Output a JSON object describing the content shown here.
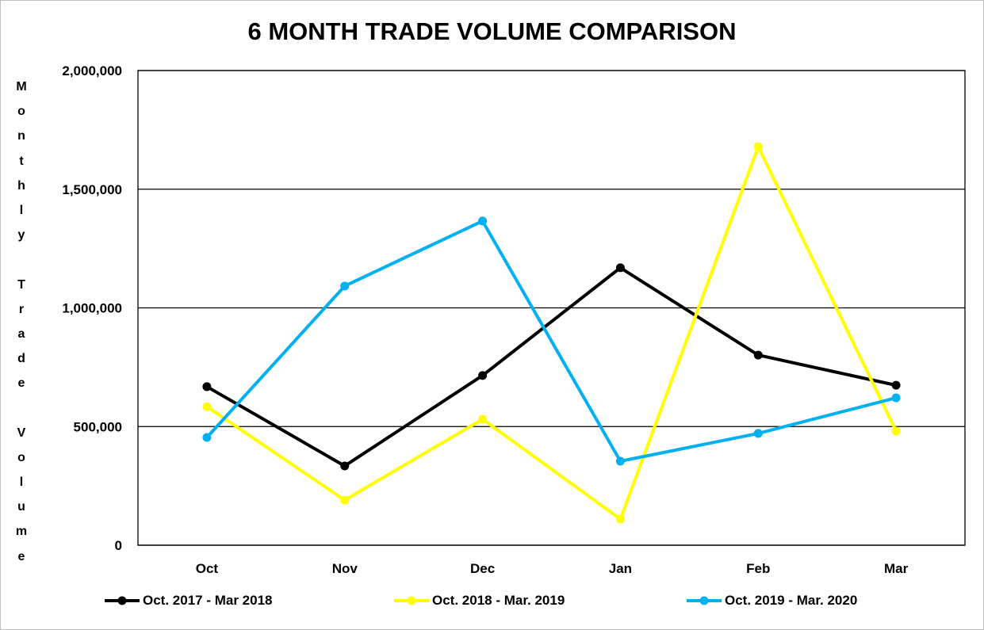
{
  "chart_data": {
    "type": "line",
    "title": "6 MONTH TRADE VOLUME COMPARISON",
    "xlabel": "",
    "ylabel": "Monthly Trade Volume",
    "categories": [
      "Oct",
      "Nov",
      "Dec",
      "Jan",
      "Feb",
      "Mar"
    ],
    "ylim": [
      0,
      2000000
    ],
    "yticks": [
      0,
      500000,
      1000000,
      1500000,
      2000000
    ],
    "ytick_labels": [
      "0",
      "500,000",
      "1,000,000",
      "1,500,000",
      "2,000,000"
    ],
    "grid": true,
    "legend_position": "bottom",
    "series": [
      {
        "name": "Oct. 2017 - Mar 2018",
        "color": "#000000",
        "values": [
          668000,
          334000,
          715000,
          1169000,
          801000,
          674000
        ]
      },
      {
        "name": "Oct. 2018 - Mar. 2019",
        "color": "#ffff00",
        "values": [
          584000,
          190000,
          531000,
          110000,
          1679000,
          481000
        ]
      },
      {
        "name": "Oct. 2019 - Mar. 2020",
        "color": "#00b0f0",
        "values": [
          454000,
          1092000,
          1366000,
          354000,
          471000,
          621000
        ]
      }
    ]
  }
}
